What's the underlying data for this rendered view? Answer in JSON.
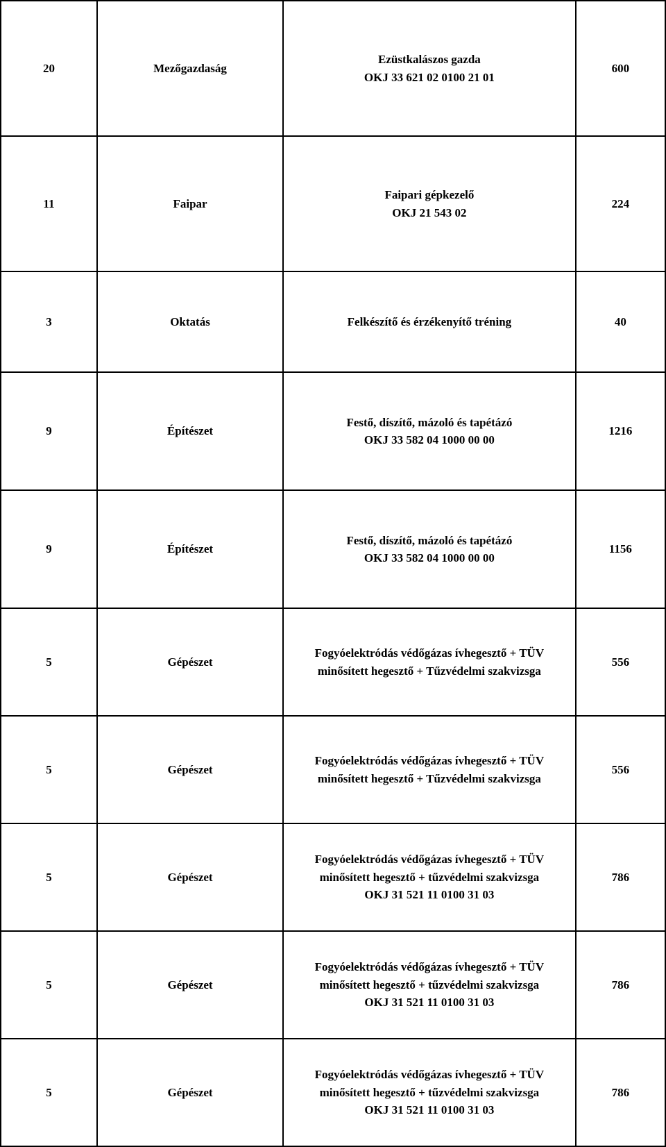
{
  "table": {
    "rows": [
      {
        "num": "20",
        "category": "Mezőgazdaság",
        "desc_line1": "Ezüstkalászos gazda",
        "desc_line2": "OKJ 33 621 02 0100 21 01",
        "value": "600",
        "heightClass": "row-tall"
      },
      {
        "num": "11",
        "category": "Faipar",
        "desc_line1": "Faipari gépkezelő",
        "desc_line2": "OKJ 21 543 02",
        "value": "224",
        "heightClass": "row-tall"
      },
      {
        "num": "3",
        "category": "Oktatás",
        "desc_line1": "Felkészítő és érzékenyítő tréning",
        "desc_line2": "",
        "value": "40",
        "heightClass": "row-xshort"
      },
      {
        "num": "9",
        "category": "Építészet",
        "desc_line1": "Festő, díszítő, mázoló és tapétázó",
        "desc_line2": "OKJ 33 582 04 1000 00 00",
        "value": "1216",
        "heightClass": "row-med"
      },
      {
        "num": "9",
        "category": "Építészet",
        "desc_line1": "Festő, díszítő, mázoló és tapétázó",
        "desc_line2": "OKJ 33 582 04 1000 00 00",
        "value": "1156",
        "heightClass": "row-med"
      },
      {
        "num": "5",
        "category": "Gépészet",
        "desc_line1": "Fogyóelektródás védőgázas ívhegesztő + TÜV minősített hegesztő + Tűzvédelmi szakvizsga",
        "desc_line2": "",
        "value": "556",
        "heightClass": "row-short"
      },
      {
        "num": "5",
        "category": "Gépészet",
        "desc_line1": "Fogyóelektródás védőgázas ívhegesztő + TÜV minősített hegesztő + Tűzvédelmi szakvizsga",
        "desc_line2": "",
        "value": "556",
        "heightClass": "row-short"
      },
      {
        "num": "5",
        "category": "Gépészet",
        "desc_line1": "Fogyóelektródás védőgázas ívhegesztő + TÜV minősített hegesztő + tűzvédelmi szakvizsga",
        "desc_line2": "OKJ 31 521 11 0100 31 03",
        "value": "786",
        "heightClass": "row-short"
      },
      {
        "num": "5",
        "category": "Gépészet",
        "desc_line1": "Fogyóelektródás védőgázas ívhegesztő + TÜV minősített hegesztő + tűzvédelmi szakvizsga",
        "desc_line2": "OKJ 31 521 11 0100 31 03",
        "value": "786",
        "heightClass": "row-short"
      },
      {
        "num": "5",
        "category": "Gépészet",
        "desc_line1": "Fogyóelektródás védőgázas ívhegesztő + TÜV minősített hegesztő + tűzvédelmi szakvizsga",
        "desc_line2": "OKJ 31 521 11 0100 31 03",
        "value": "786",
        "heightClass": "row-short"
      }
    ]
  }
}
